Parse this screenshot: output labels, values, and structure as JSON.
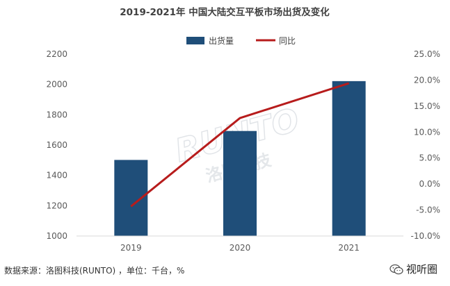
{
  "chart_data": {
    "type": "bar",
    "title": "2019-2021年 中国大陆交互平板市场出货及变化",
    "categories": [
      "2019",
      "2020",
      "2021"
    ],
    "series": [
      {
        "name": "出货量",
        "type": "bar",
        "axis": "left",
        "values": [
          1502,
          1693,
          2022
        ]
      },
      {
        "name": "同比",
        "type": "line",
        "axis": "right",
        "values": [
          -4.3,
          12.7,
          19.4
        ]
      }
    ],
    "ylim_left": [
      1000,
      2200
    ],
    "yticks_left": [
      "1000",
      "1200",
      "1400",
      "1600",
      "1800",
      "2000",
      "2200"
    ],
    "ylim_right": [
      -10,
      25
    ],
    "yticks_right": [
      "-10.0%",
      "-5.0%",
      "0.0%",
      "5.0%",
      "10.0%",
      "15.0%",
      "20.0%",
      "25.0%"
    ],
    "grid": false,
    "legend": "top-center",
    "colors": {
      "bar": "#1F4E79",
      "line": "#B71C1C"
    },
    "watermark": {
      "latin": "RUNTO",
      "chinese": "洛图科技"
    }
  },
  "footer": {
    "source": "数据来源：洛图科技(RUNTO) ，单位：千台，%"
  },
  "brand": {
    "name": "视听圈",
    "icon": "wechat-icon"
  }
}
